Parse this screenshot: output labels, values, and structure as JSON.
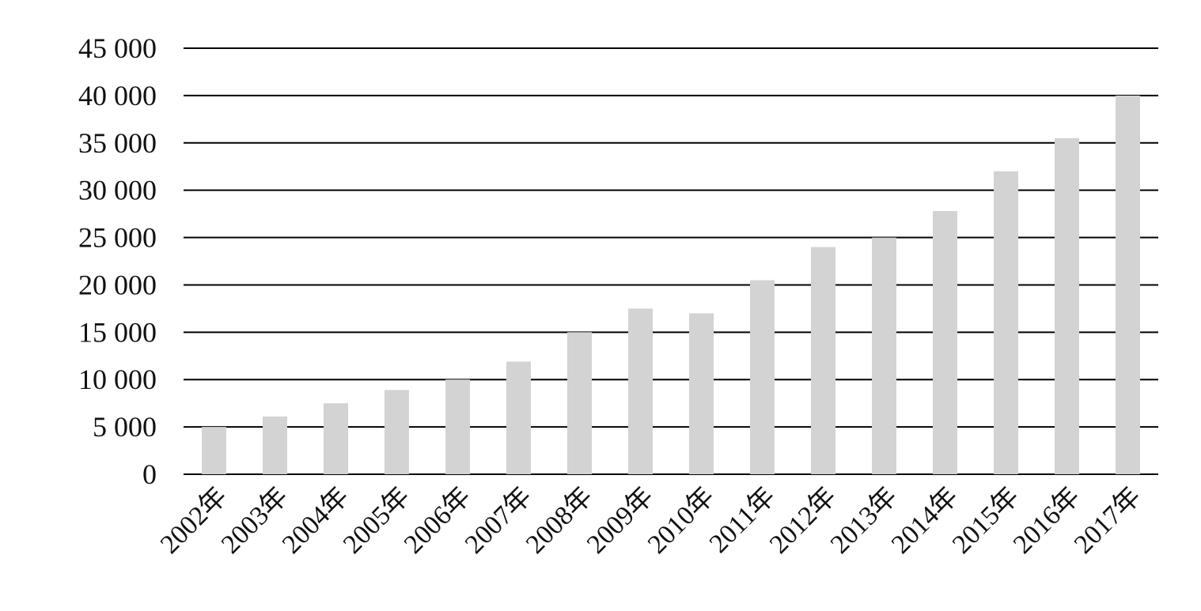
{
  "chart_data": {
    "type": "bar",
    "categories": [
      "2002年",
      "2003年",
      "2004年",
      "2005年",
      "2006年",
      "2007年",
      "2008年",
      "2009年",
      "2010年",
      "2011年",
      "2012年",
      "2013年",
      "2014年",
      "2015年",
      "2016年",
      "2017年"
    ],
    "values": [
      5000,
      6100,
      7500,
      8900,
      10000,
      11900,
      15000,
      17500,
      17000,
      20500,
      24000,
      25000,
      27800,
      32000,
      35500,
      40000
    ],
    "yticks": [
      "0",
      "5 000",
      "10 000",
      "15 000",
      "20 000",
      "25 000",
      "30 000",
      "35 000",
      "40 000",
      "45 000"
    ],
    "ylim": [
      0,
      45000
    ],
    "ytick_step": 5000,
    "title": "",
    "xlabel": "",
    "ylabel": "",
    "grid": true,
    "legend": "none",
    "bar_color": "#d3d3d3",
    "grid_color": "#000000",
    "text_color": "#111111"
  }
}
